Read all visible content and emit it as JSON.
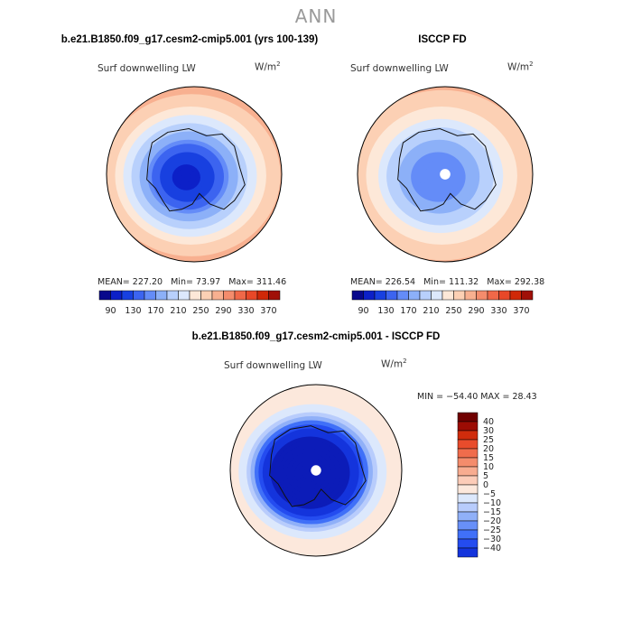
{
  "header": {
    "title": "ANN"
  },
  "colors": {
    "abs_scale": [
      "#08088c",
      "#0c20c8",
      "#1840e0",
      "#3c64f0",
      "#648cf8",
      "#8cb0f8",
      "#b8d0fc",
      "#dce8fc",
      "#fde8d8",
      "#fcd0b4",
      "#f8b090",
      "#f48c6c",
      "#f06848",
      "#e84828",
      "#d02808",
      "#a01008",
      "#6c0000"
    ],
    "diff_scale": [
      "#0c0880",
      "#0c1cb8",
      "#1434dc",
      "#244cf0",
      "#4070f8",
      "#6890f8",
      "#90b0f8",
      "#b8ccfc",
      "#dce8fc",
      "#fce8dc",
      "#fcccb8",
      "#f8ac90",
      "#f48c6c",
      "#f06c4c",
      "#e84c2c",
      "#d02c0c",
      "#9c0c04",
      "#700000"
    ],
    "land_line": "#111111"
  },
  "chart_data": [
    {
      "type": "heatmap",
      "projection": "south-polar-stereographic",
      "title": "b.e21.B1850.f09_g17.cesm2-cmip5.001 (yrs 100-139)",
      "variable": "Surf downwelling LW",
      "units": "W/m",
      "units_sup": "2",
      "stats": {
        "mean_label": "MEAN=",
        "mean": "227.20",
        "min_label": "Min=",
        "min": "73.97",
        "max_label": "Max=",
        "max": "311.46"
      },
      "levels": [
        90,
        110,
        130,
        150,
        170,
        190,
        210,
        230,
        250,
        270,
        290,
        310,
        330,
        350,
        370
      ],
      "tick_labels": [
        "90",
        "130",
        "170",
        "210",
        "250",
        "290",
        "330",
        "370"
      ],
      "radial_profile": [
        {
          "colatitude_deg": 0,
          "value": 95
        },
        {
          "colatitude_deg": 10,
          "value": 120
        },
        {
          "colatitude_deg": 20,
          "value": 185
        },
        {
          "colatitude_deg": 25,
          "value": 215
        },
        {
          "colatitude_deg": 30,
          "value": 245
        },
        {
          "colatitude_deg": 40,
          "value": 285
        },
        {
          "colatitude_deg": 50,
          "value": 310
        }
      ]
    },
    {
      "type": "heatmap",
      "projection": "south-polar-stereographic",
      "title": "ISCCP FD",
      "variable": "Surf downwelling LW",
      "units": "W/m",
      "units_sup": "2",
      "stats": {
        "mean_label": "MEAN=",
        "mean": "226.54",
        "min_label": "Min=",
        "min": "111.32",
        "max_label": "Max=",
        "max": "292.38"
      },
      "levels": [
        90,
        110,
        130,
        150,
        170,
        190,
        210,
        230,
        250,
        270,
        290,
        310,
        330,
        350,
        370
      ],
      "tick_labels": [
        "90",
        "130",
        "170",
        "210",
        "250",
        "290",
        "330",
        "370"
      ],
      "radial_profile": [
        {
          "colatitude_deg": 0,
          "value": 150
        },
        {
          "colatitude_deg": 10,
          "value": 160
        },
        {
          "colatitude_deg": 20,
          "value": 200
        },
        {
          "colatitude_deg": 25,
          "value": 225
        },
        {
          "colatitude_deg": 30,
          "value": 245
        },
        {
          "colatitude_deg": 40,
          "value": 275
        },
        {
          "colatitude_deg": 50,
          "value": 292
        }
      ]
    },
    {
      "type": "heatmap",
      "projection": "south-polar-stereographic",
      "title": "b.e21.B1850.f09_g17.cesm2-cmip5.001 - ISCCP FD",
      "variable": "Surf downwelling LW",
      "units": "W/m",
      "units_sup": "2",
      "stats_line": "MIN = −54.40 MAX =  28.43",
      "stats": {
        "min": "-54.40",
        "max": "28.43"
      },
      "levels": [
        -40,
        -30,
        -25,
        -20,
        -15,
        -10,
        -5,
        0,
        5,
        10,
        15,
        20,
        25,
        30,
        40
      ],
      "tick_labels": [
        "40",
        "30",
        "25",
        "20",
        "15",
        "10",
        "5",
        "0",
        "−5",
        "−10",
        "−15",
        "−20",
        "−25",
        "−30",
        "−40"
      ],
      "radial_profile": [
        {
          "colatitude_deg": 0,
          "value": -40
        },
        {
          "colatitude_deg": 15,
          "value": -35
        },
        {
          "colatitude_deg": 22,
          "value": -20
        },
        {
          "colatitude_deg": 27,
          "value": 0
        },
        {
          "colatitude_deg": 35,
          "value": 8
        },
        {
          "colatitude_deg": 50,
          "value": 12
        }
      ]
    }
  ]
}
